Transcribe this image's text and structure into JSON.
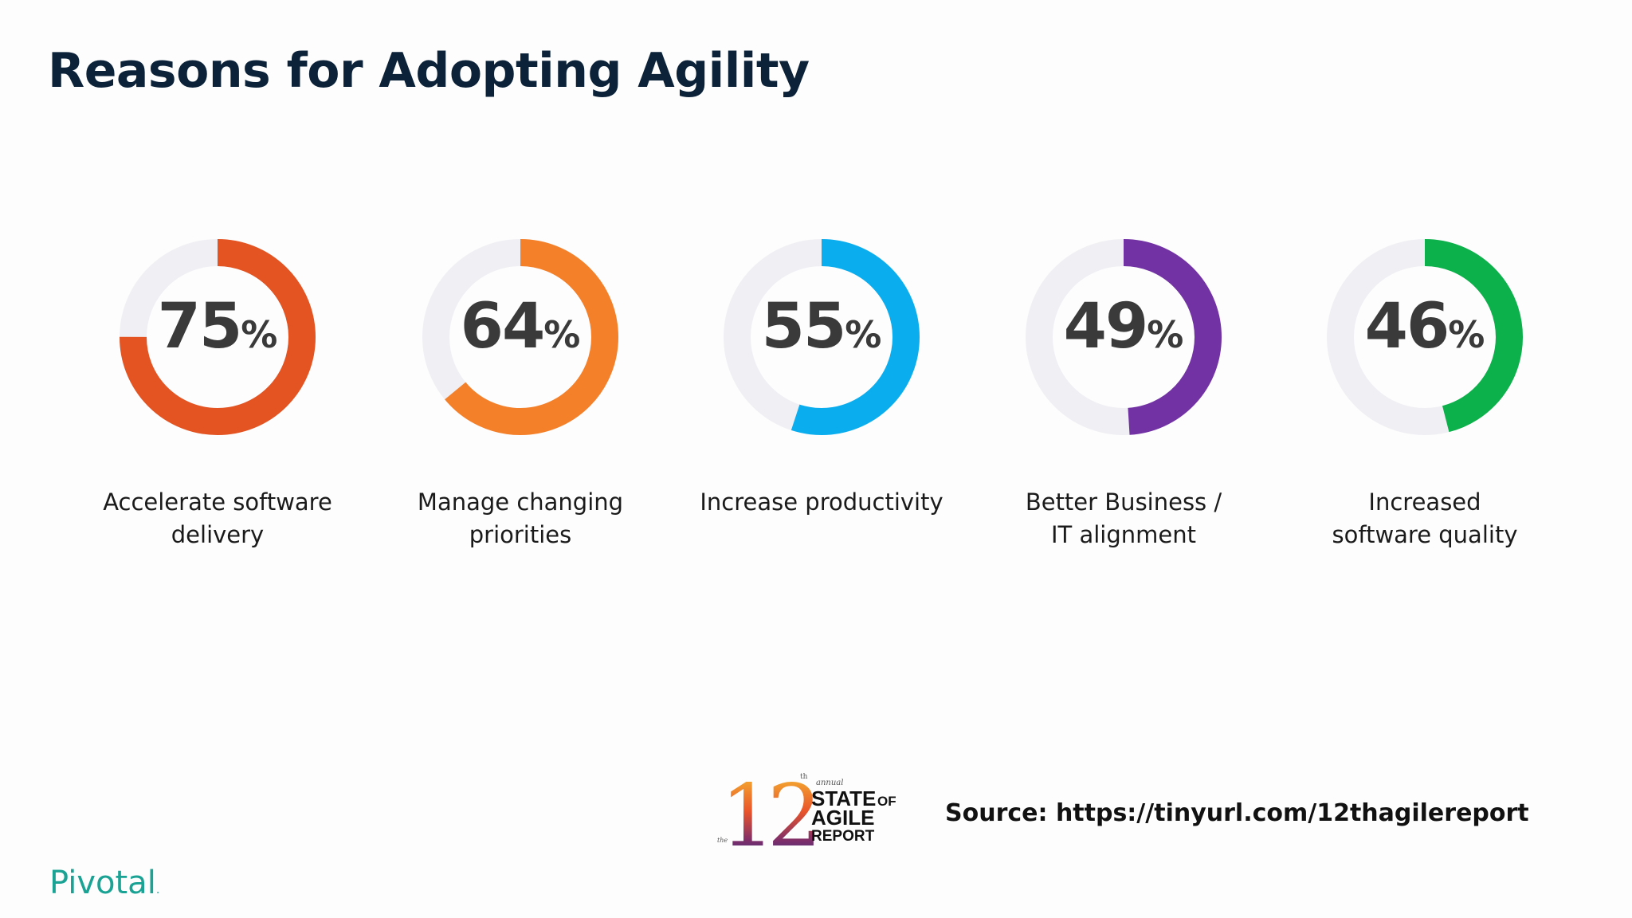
{
  "slide": {
    "title": "Reasons for Adopting Agility",
    "source": "Source: https://tinyurl.com/12thagilereport",
    "brand": "Pivotal",
    "brand_mark": "."
  },
  "logo": {
    "number": "12",
    "ordinal": "th",
    "small_left": "the",
    "small_top": "annual",
    "line1": "STATE",
    "line1_small": "OF",
    "line2": "AGILE",
    "line2_mark": "™",
    "line3": "REPORT"
  },
  "colors": {
    "track": "#f0eff3",
    "text": "#3a3a3a",
    "title": "#0b2239",
    "brand": "#1aa394"
  },
  "chart_data": {
    "type": "pie",
    "variant": "donut",
    "unit": "%",
    "max": 100,
    "items": [
      {
        "label": "Accelerate software delivery",
        "label_lines": [
          "Accelerate software",
          "delivery"
        ],
        "value": 75,
        "color": "#e35422"
      },
      {
        "label": "Manage changing priorities",
        "label_lines": [
          "Manage changing",
          "priorities"
        ],
        "value": 64,
        "color": "#f5802a"
      },
      {
        "label": "Increase productivity",
        "label_lines": [
          "Increase productivity"
        ],
        "value": 55,
        "color": "#0aaeef"
      },
      {
        "label": "Better Business / IT alignment",
        "label_lines": [
          "Better Business /",
          "IT alignment"
        ],
        "value": 49,
        "color": "#7232a4"
      },
      {
        "label": "Increased software quality",
        "label_lines": [
          "Increased",
          "software quality"
        ],
        "value": 46,
        "color": "#0db14b"
      }
    ]
  }
}
